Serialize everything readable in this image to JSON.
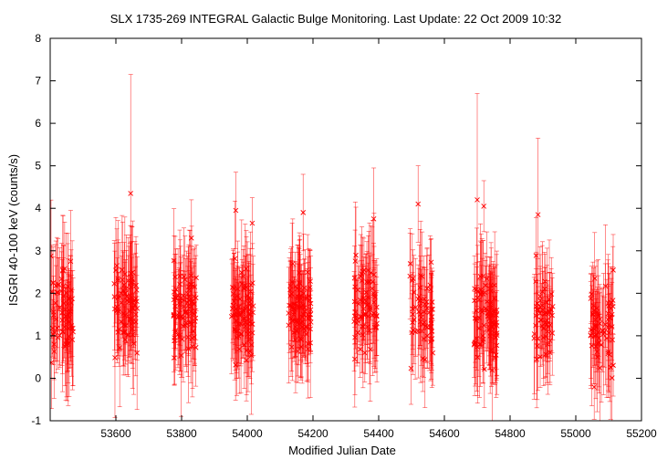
{
  "chart_data": {
    "type": "scatter",
    "title": "SLX 1735-269   INTEGRAL Galactic Bulge Monitoring.  Last Update: 22 Oct 2009 10:32",
    "xlabel": "Modified Julian Date",
    "ylabel": "ISGRI 40-100 keV (counts/s)",
    "xlim": [
      53400,
      55200
    ],
    "ylim": [
      -1,
      8
    ],
    "x_ticks": [
      53600,
      53800,
      54000,
      54200,
      54400,
      54600,
      54800,
      55000,
      55200
    ],
    "y_ticks": [
      -1,
      0,
      1,
      2,
      3,
      4,
      5,
      6,
      7,
      8
    ],
    "marker": "x",
    "error_bars": true,
    "grid": false,
    "legend": "none",
    "color": "#ff0000",
    "observation_windows": [
      {
        "start": 53400,
        "end": 53470,
        "mean": 1.5,
        "n": 70
      },
      {
        "start": 53595,
        "end": 53665,
        "mean": 1.6,
        "n": 75
      },
      {
        "start": 53775,
        "end": 53845,
        "mean": 1.6,
        "n": 80
      },
      {
        "start": 53950,
        "end": 54020,
        "mean": 1.6,
        "n": 80
      },
      {
        "start": 54125,
        "end": 54195,
        "mean": 1.6,
        "n": 85
      },
      {
        "start": 54325,
        "end": 54395,
        "mean": 1.6,
        "n": 70
      },
      {
        "start": 54495,
        "end": 54565,
        "mean": 1.5,
        "n": 60
      },
      {
        "start": 54690,
        "end": 54760,
        "mean": 1.5,
        "n": 90
      },
      {
        "start": 54870,
        "end": 54930,
        "mean": 1.5,
        "n": 55
      },
      {
        "start": 55045,
        "end": 55115,
        "mean": 1.2,
        "n": 65
      }
    ],
    "highlighted_points": [
      {
        "x": 53645,
        "y": 4.35,
        "err": 2.8
      },
      {
        "x": 54700,
        "y": 4.2,
        "err": 2.5
      },
      {
        "x": 54885,
        "y": 3.85,
        "err": 1.8
      },
      {
        "x": 54015,
        "y": 3.65,
        "err": 0.6
      },
      {
        "x": 54170,
        "y": 3.9,
        "err": 0.9
      },
      {
        "x": 53965,
        "y": 3.95,
        "err": 0.9
      },
      {
        "x": 54520,
        "y": 4.1,
        "err": 0.9
      },
      {
        "x": 54720,
        "y": 4.05,
        "err": 0.6
      },
      {
        "x": 54385,
        "y": 3.75,
        "err": 1.2
      },
      {
        "x": 53830,
        "y": 3.3,
        "err": 0.9
      }
    ]
  }
}
